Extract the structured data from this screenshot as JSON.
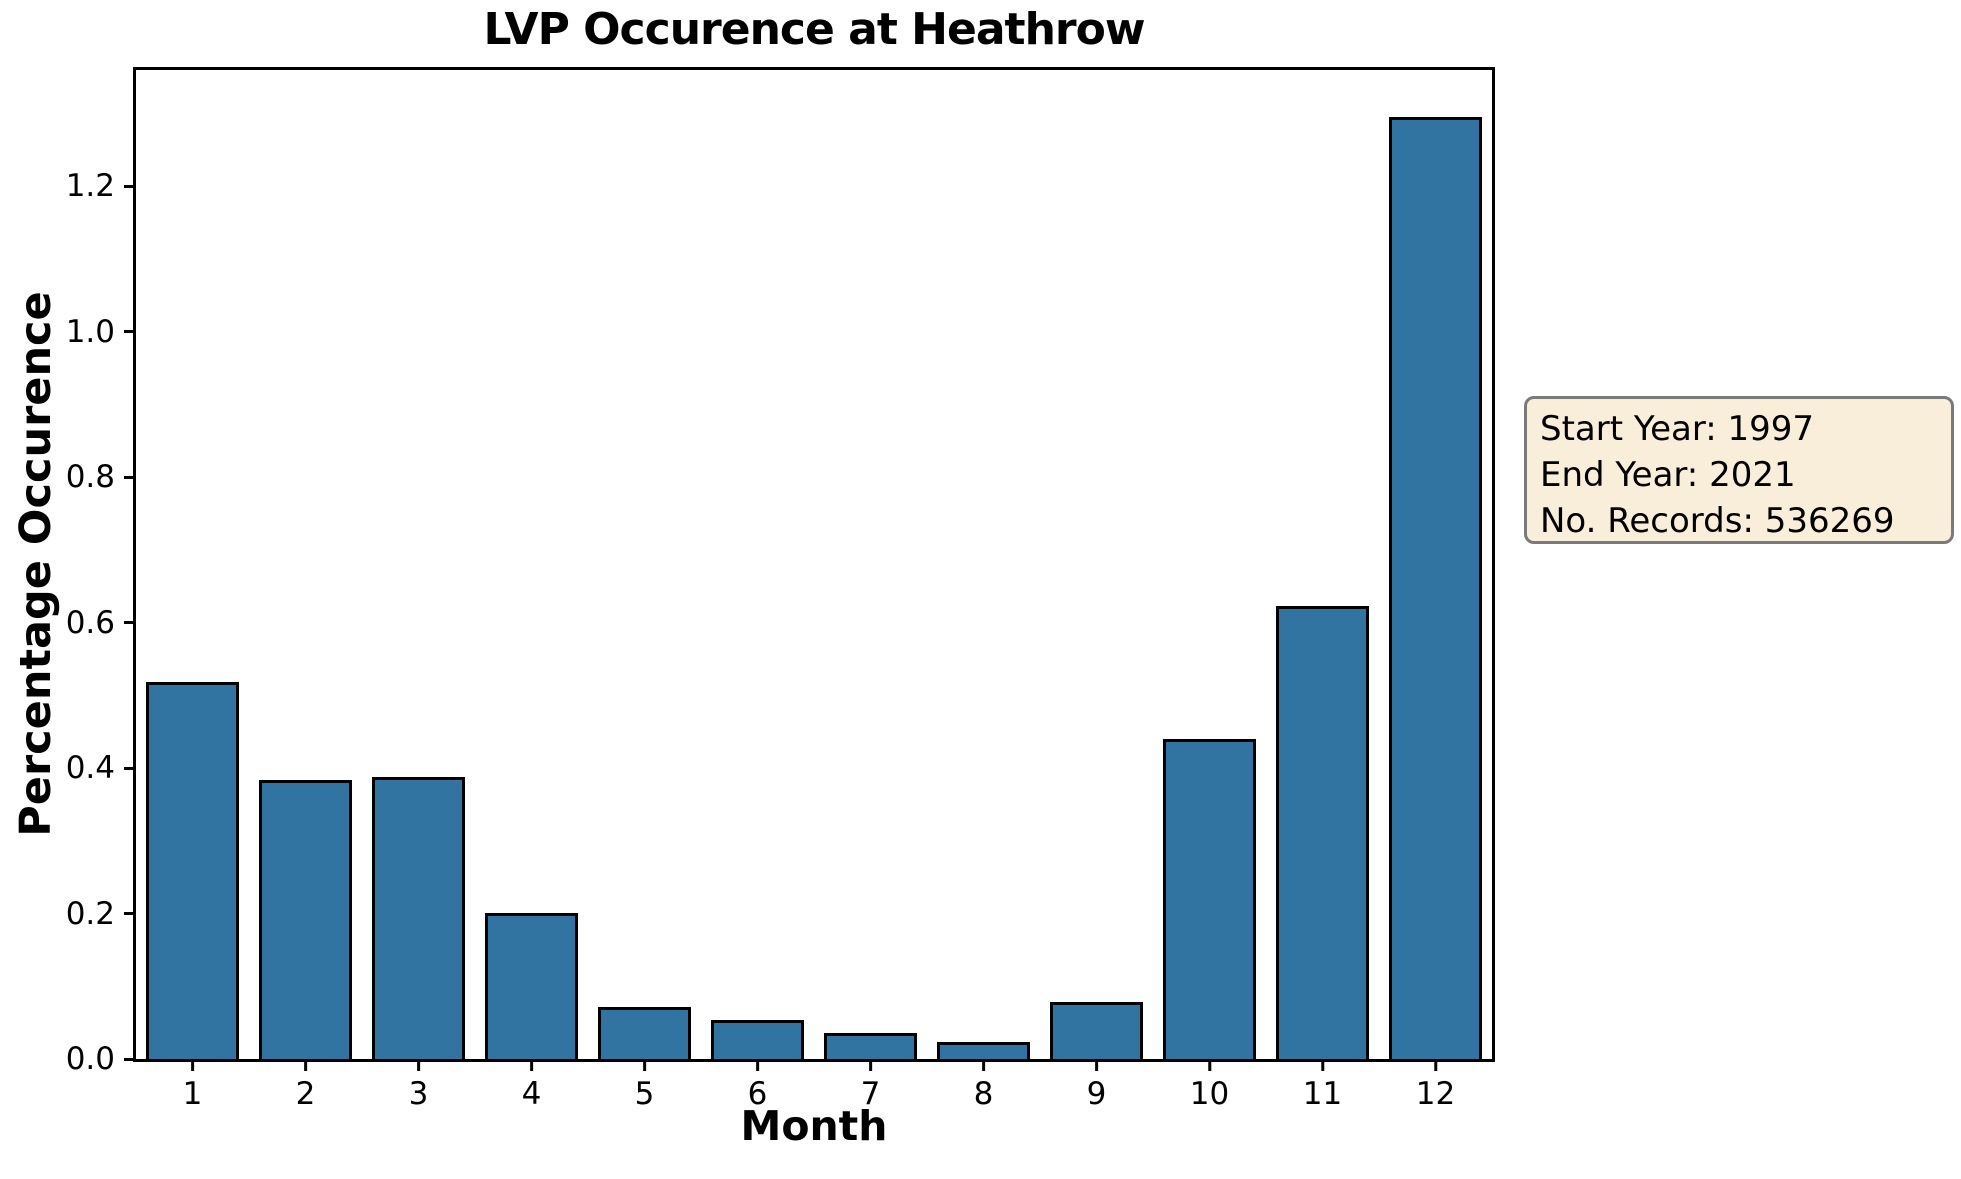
{
  "chart_data": {
    "type": "bar",
    "title": "LVP Occurence at Heathrow",
    "xlabel": "Month",
    "ylabel": "Percentage Occurence",
    "categories": [
      "1",
      "2",
      "3",
      "4",
      "5",
      "6",
      "7",
      "8",
      "9",
      "10",
      "11",
      "12"
    ],
    "values": [
      0.518,
      0.383,
      0.388,
      0.201,
      0.071,
      0.053,
      0.036,
      0.023,
      0.078,
      0.44,
      0.623,
      1.295
    ],
    "ylim": [
      0,
      1.36
    ],
    "yticks": [
      "0.0",
      "0.2",
      "0.4",
      "0.6",
      "0.8",
      "1.0",
      "1.2"
    ],
    "grid": false,
    "legend_position": "none",
    "bar_color": "#3173a1",
    "bar_edge_color": "#000000",
    "spine_color": "#000000"
  },
  "annotation": {
    "lines": [
      "Start Year: 1997",
      "End Year: 2021",
      "No. Records: 536269"
    ],
    "background": "#f9eed9",
    "border_color": "#7a7a7a",
    "text_color": "#000000"
  }
}
